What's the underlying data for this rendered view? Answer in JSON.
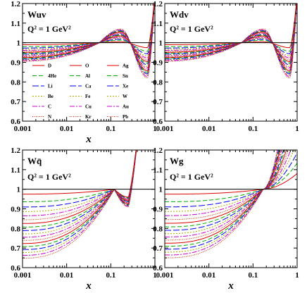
{
  "colors": {
    "D": "#dd0000",
    "4He": "#00aa00",
    "Li": "#0000ee",
    "Be": "#aaaa00",
    "C": "#cc00cc",
    "N": "#dd2200",
    "O": "#dd0000",
    "Al": "#00aa00",
    "Ca": "#0000ee",
    "Fe": "#aaaa00",
    "Cu": "#cc00cc",
    "Kr": "#dd2200",
    "Ag": "#dd0000",
    "Sn": "#00aa00",
    "Xe": "#0000ee",
    "W": "#aaaa00",
    "Au": "#cc00cc",
    "Pb": "#dd2200"
  },
  "legend": {
    "columns": [
      [
        {
          "label": "D",
          "style": "solid"
        },
        {
          "label": "4He",
          "style": "dash"
        },
        {
          "label": "Li",
          "style": "longdash"
        },
        {
          "label": "Be",
          "style": "dot"
        },
        {
          "label": "C",
          "style": "dashdot"
        },
        {
          "label": "N",
          "style": "fine-dot"
        }
      ],
      [
        {
          "label": "O",
          "style": "solid"
        },
        {
          "label": "Al",
          "style": "dash"
        },
        {
          "label": "Ca",
          "style": "longdash"
        },
        {
          "label": "Fe",
          "style": "dot"
        },
        {
          "label": "Cu",
          "style": "dashdot"
        },
        {
          "label": "Kr",
          "style": "fine-dot"
        }
      ],
      [
        {
          "label": "Ag",
          "style": "solid"
        },
        {
          "label": "Sn",
          "style": "dash"
        },
        {
          "label": "Xe",
          "style": "longdash"
        },
        {
          "label": "W",
          "style": "dot"
        },
        {
          "label": "Au",
          "style": "dashdot"
        },
        {
          "label": "Pb",
          "style": "fine-dot"
        }
      ]
    ]
  },
  "chart_data": [
    {
      "type": "line",
      "title": "Wuv",
      "subtitle": "Q² = 1 GeV²",
      "xlabel": "x",
      "xscale": "log",
      "xlim": [
        0.001,
        1
      ],
      "ylim": [
        0.6,
        1.2
      ],
      "xticks": [
        "0.001",
        "0.01",
        "0.1",
        "1"
      ],
      "yticks": [
        "0.6",
        "0.7",
        "0.8",
        "0.9",
        "1",
        "1.1",
        "1.2"
      ],
      "reference_line": 1,
      "legend_position": "lower-left",
      "shape": "valence",
      "params": {
        "peak_x": 0.17,
        "x_cross": 0.055,
        "min_x": 0.68,
        "min_val": [
          0.975,
          0.82
        ],
        "peak_val": [
          1.005,
          1.07
        ],
        "low_val": [
          0.99,
          0.905
        ]
      }
    },
    {
      "type": "line",
      "title": "Wdv",
      "subtitle": "Q² = 1 GeV²",
      "xlabel": "",
      "xscale": "log",
      "xlim": [
        0.001,
        1
      ],
      "ylim": [
        0.6,
        1.2
      ],
      "xticks": [
        "0.001",
        "0.01",
        "0.1",
        "1"
      ],
      "yticks": [
        "0.6",
        "0.7",
        "0.8",
        "0.9",
        "1",
        "1.1",
        "1.2"
      ],
      "reference_line": 1,
      "shape": "valence",
      "params": {
        "peak_x": 0.17,
        "x_cross": 0.055,
        "min_x": 0.68,
        "min_val": [
          0.975,
          0.82
        ],
        "peak_val": [
          1.005,
          1.07
        ],
        "low_val": [
          0.99,
          0.905
        ]
      }
    },
    {
      "type": "line",
      "title": "Wq̄",
      "subtitle": "Q² = 1 GeV²",
      "xlabel": "x",
      "xscale": "log",
      "xlim": [
        0.001,
        1
      ],
      "ylim": [
        0.6,
        1.2
      ],
      "xticks": [
        "0.001",
        "0.01",
        "0.1",
        "1"
      ],
      "yticks": [
        "0.6",
        "0.7",
        "0.8",
        "0.9",
        "1",
        "1.1",
        "1.2"
      ],
      "reference_line": 1,
      "shape": "sea",
      "params": {
        "low_val": [
          0.975,
          0.648
        ],
        "peak_x": 0.12,
        "dip_x": 0.25
      }
    },
    {
      "type": "line",
      "title": "Wg",
      "subtitle": "Q² = 1 GeV²",
      "xlabel": "x",
      "xscale": "log",
      "xlim": [
        0.001,
        1
      ],
      "ylim": [
        0.6,
        1.2
      ],
      "xticks": [
        "0.001",
        "0.01",
        "0.1",
        "1"
      ],
      "yticks": [
        "0.6",
        "0.7",
        "0.8",
        "0.9",
        "1",
        "1.1",
        "1.2"
      ],
      "reference_line": 1,
      "shape": "gluon",
      "params": {
        "low_val": [
          0.975,
          0.65
        ],
        "x_cross": 0.17
      }
    }
  ]
}
